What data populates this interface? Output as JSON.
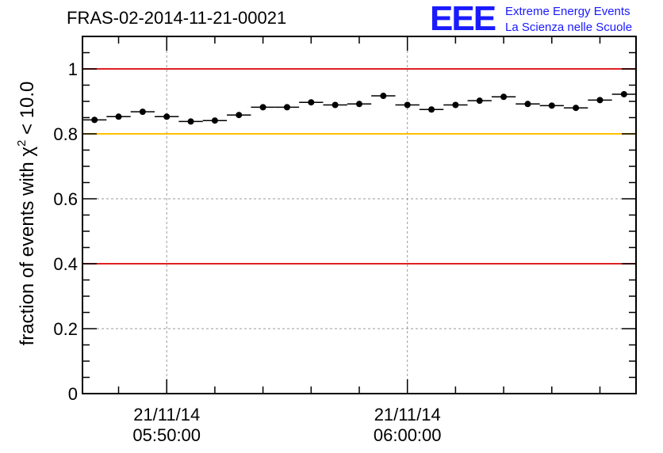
{
  "title": "FRAS-02-2014-11-21-00021",
  "logo": {
    "mark": "EEE",
    "line1": "Extreme Energy Events",
    "line2": "La Scienza nelle Scuole",
    "color": "#1a1aff"
  },
  "chart_data": {
    "type": "scatter",
    "ylabel_prefix": "fraction of events with ",
    "ylabel_symbol": "χ",
    "ylabel_exponent": "2",
    "ylabel_suffix": " < 10.0",
    "ylim": [
      0,
      1.1
    ],
    "yticks": [
      0,
      0.2,
      0.4,
      0.6,
      0.8,
      1
    ],
    "ytick_labels": [
      "0",
      "0.2",
      "0.4",
      "0.6",
      "0.8",
      "1"
    ],
    "xticks": [
      {
        "x": 3.5,
        "date": "21/11/14",
        "time": "05:50:00"
      },
      {
        "x": 13.5,
        "date": "21/11/14",
        "time": "06:00:00"
      }
    ],
    "xlim": [
      0,
      23
    ],
    "grid": true,
    "reference_lines": [
      {
        "y": 1.0,
        "color": "#e02020"
      },
      {
        "y": 0.8,
        "color": "#ffc000"
      },
      {
        "y": 0.4,
        "color": "#e02020"
      }
    ],
    "points": [
      {
        "x": 0.5,
        "y": 0.843
      },
      {
        "x": 1.5,
        "y": 0.853
      },
      {
        "x": 2.5,
        "y": 0.868
      },
      {
        "x": 3.5,
        "y": 0.853
      },
      {
        "x": 4.5,
        "y": 0.838
      },
      {
        "x": 5.5,
        "y": 0.841
      },
      {
        "x": 6.5,
        "y": 0.858
      },
      {
        "x": 7.5,
        "y": 0.882
      },
      {
        "x": 8.5,
        "y": 0.882
      },
      {
        "x": 9.5,
        "y": 0.897
      },
      {
        "x": 10.5,
        "y": 0.889
      },
      {
        "x": 11.5,
        "y": 0.892
      },
      {
        "x": 12.5,
        "y": 0.917
      },
      {
        "x": 13.5,
        "y": 0.889
      },
      {
        "x": 14.5,
        "y": 0.875
      },
      {
        "x": 15.5,
        "y": 0.889
      },
      {
        "x": 16.5,
        "y": 0.902
      },
      {
        "x": 17.5,
        "y": 0.914
      },
      {
        "x": 18.5,
        "y": 0.892
      },
      {
        "x": 19.5,
        "y": 0.887
      },
      {
        "x": 20.5,
        "y": 0.88
      },
      {
        "x": 21.5,
        "y": 0.904
      },
      {
        "x": 22.5,
        "y": 0.922
      }
    ]
  }
}
